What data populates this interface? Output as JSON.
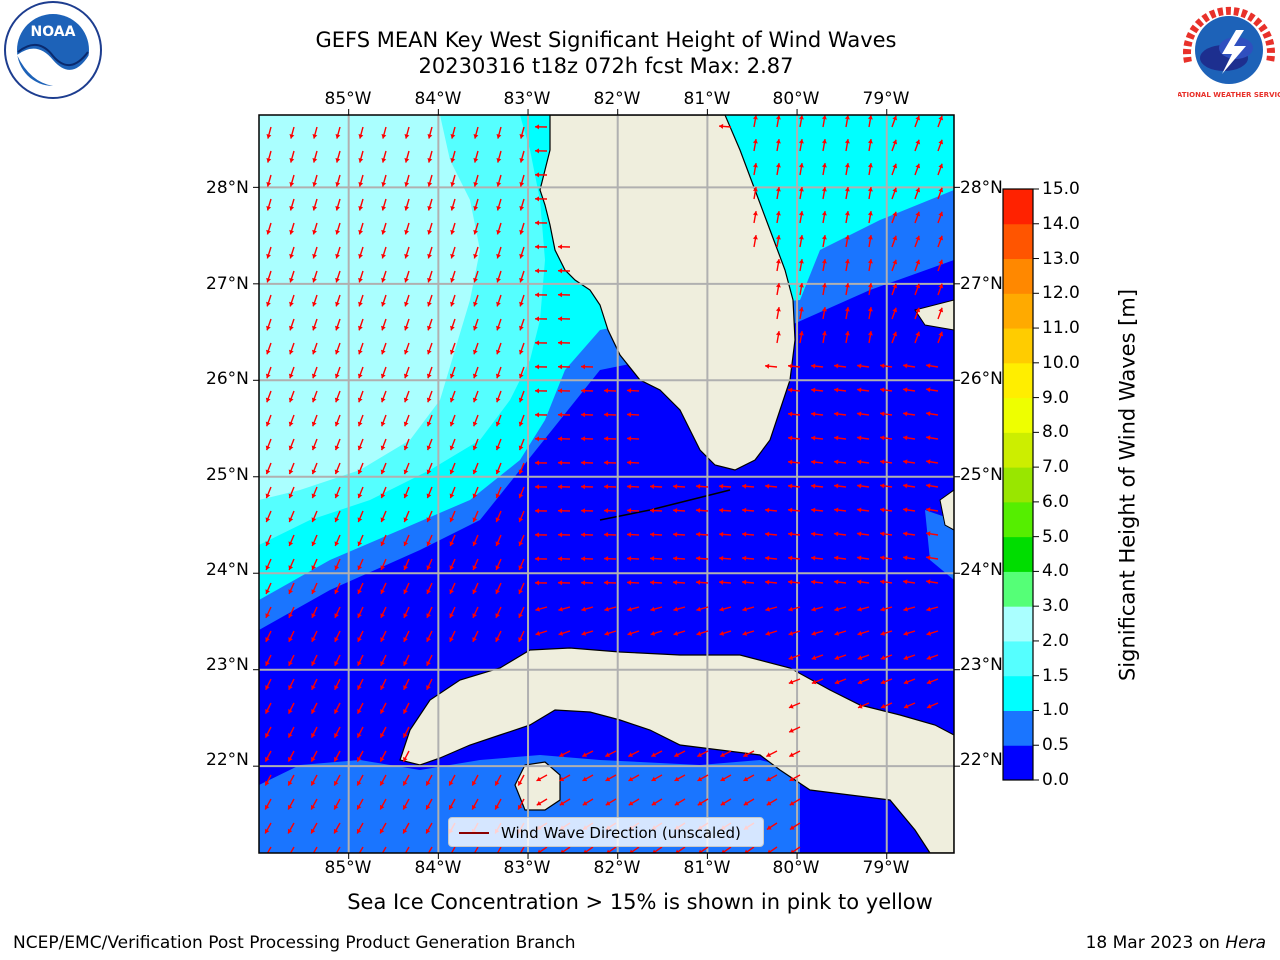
{
  "title": {
    "line1": "GEFS MEAN Key West Significant Height of Wind Waves",
    "line2": "20230316 t18z 072h fcst   Max: 2.87"
  },
  "logos": {
    "left": {
      "name": "noaa-logo",
      "text": "NOAA"
    },
    "right": {
      "name": "nws-logo",
      "text": "NATIONAL WEATHER SERVICE"
    }
  },
  "map": {
    "lon_labels": [
      "85°W",
      "84°W",
      "83°W",
      "82°W",
      "81°W",
      "80°W",
      "79°W"
    ],
    "lat_labels": [
      "28°N",
      "27°N",
      "26°N",
      "25°N",
      "24°N",
      "23°N",
      "22°N"
    ],
    "extent": {
      "lon": [
        -86.0,
        -78.25
      ],
      "lat": [
        21.1,
        28.75
      ]
    }
  },
  "colorbar": {
    "title": "Significant Height of Wind Waves [m]",
    "ticks": [
      "15.0",
      "14.0",
      "13.0",
      "12.0",
      "11.0",
      "10.0",
      "9.0",
      "8.0",
      "7.0",
      "6.0",
      "5.0",
      "4.0",
      "3.0",
      "2.0",
      "1.5",
      "1.0",
      "0.5",
      "0.0"
    ],
    "levels": [
      0.0,
      0.5,
      1.0,
      1.5,
      2.0,
      3.0,
      4.0,
      5.0,
      6.0,
      7.0,
      8.0,
      9.0,
      10.0,
      11.0,
      12.0,
      13.0,
      14.0,
      15.0
    ],
    "colors": [
      "#0000ff",
      "#1a75ff",
      "#00ffff",
      "#55ffff",
      "#aaffff",
      "#55ff77",
      "#00dd00",
      "#55ee00",
      "#99e600",
      "#ccee00",
      "#eeff00",
      "#ffee00",
      "#ffcc00",
      "#ffaa00",
      "#ff8800",
      "#ff5500",
      "#ff2200"
    ]
  },
  "legend": {
    "label": "Wind Wave Direction (unscaled)"
  },
  "note": "Sea Ice Concentration > 15% is shown in pink to yellow",
  "footer": {
    "left": "NCEP/EMC/Verification Post Processing Product Generation Branch",
    "right_prefix": "18 Mar 2023 on ",
    "right_machine": "Hera"
  },
  "colors": {
    "land": "#efeedd",
    "arrow": "#ff0000",
    "grid": "#b0b0b0"
  }
}
